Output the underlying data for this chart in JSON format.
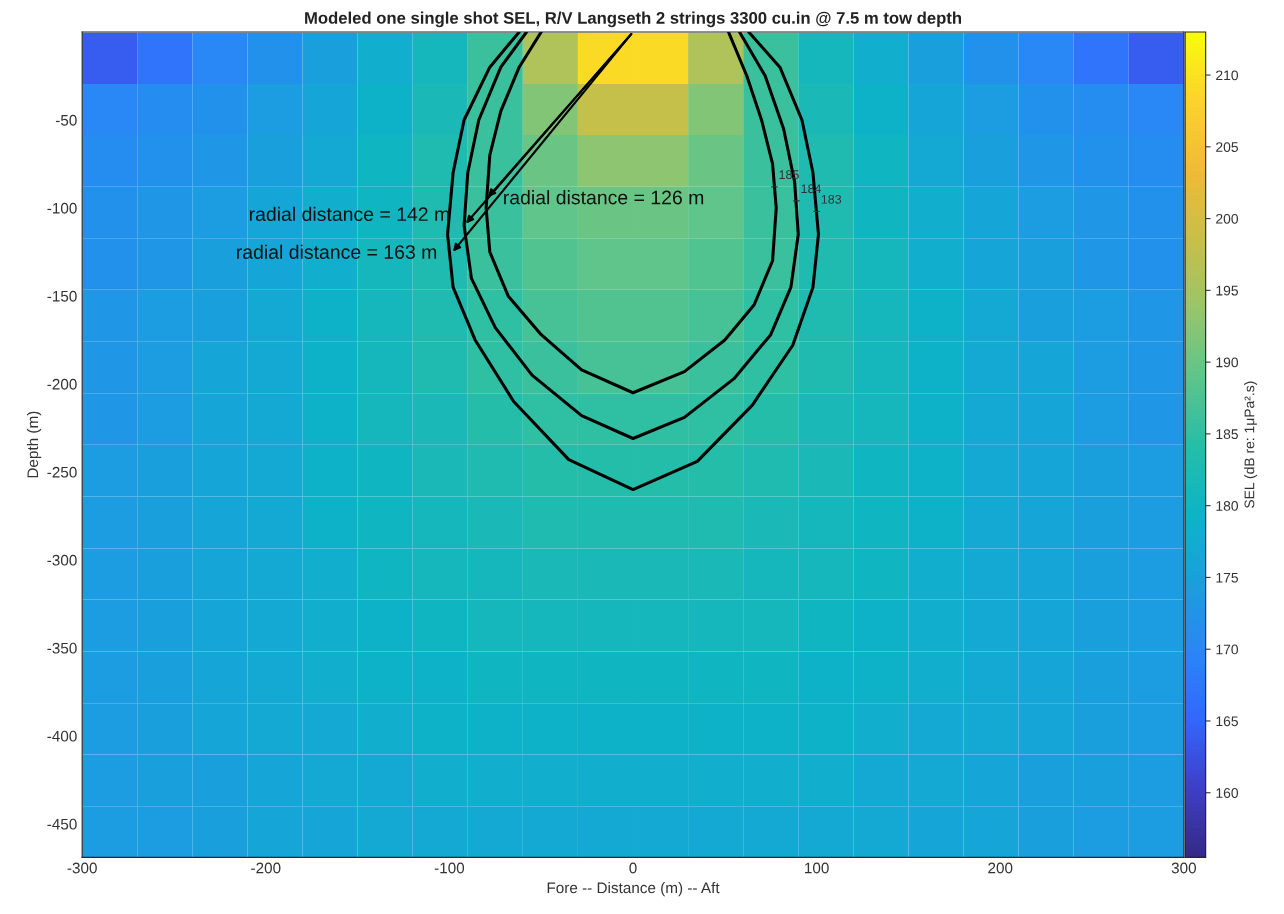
{
  "chart_data": {
    "type": "heatmap",
    "title": "Modeled one single shot SEL, R/V Langseth 2 strings 3300 cu.in @ 7.5 m tow depth",
    "xlabel": "Fore -- Distance (m) -- Aft",
    "ylabel": "Depth (m)",
    "clabel": "SEL (dB re: 1μPa².s)",
    "xlim": [
      -300,
      300
    ],
    "ylim": [
      -469,
      0
    ],
    "xticks": [
      -300,
      -200,
      -100,
      0,
      100,
      200,
      300
    ],
    "yticks": [
      -450,
      -400,
      -350,
      -300,
      -250,
      -200,
      -150,
      -100,
      -50
    ],
    "clim": [
      155.5,
      213
    ],
    "cticks": [
      160,
      165,
      170,
      175,
      180,
      185,
      190,
      195,
      200,
      205,
      210
    ],
    "x": [
      -285,
      -255,
      -225,
      -195,
      -165,
      -135,
      -105,
      -75,
      -45,
      -15,
      15,
      45,
      75,
      105,
      135,
      165,
      195,
      225,
      255,
      285
    ],
    "y": [
      -15,
      -44,
      -73,
      -103,
      -132,
      -161,
      -191,
      -220,
      -249,
      -279,
      -308,
      -337,
      -367,
      -396,
      -425,
      -455
    ],
    "cells": [
      [
        164,
        167,
        170,
        172,
        175,
        178,
        181,
        186,
        196,
        209,
        209,
        196,
        186,
        181,
        178,
        175,
        172,
        170,
        167,
        164
      ],
      [
        170,
        171,
        172,
        174,
        176,
        179,
        182,
        186,
        192,
        198,
        198,
        192,
        186,
        182,
        179,
        176,
        174,
        172,
        171,
        170
      ],
      [
        171,
        172,
        173,
        175,
        177,
        180,
        183,
        186,
        190,
        193,
        193,
        190,
        186,
        183,
        180,
        177,
        175,
        173,
        172,
        171
      ],
      [
        172,
        173,
        174,
        176,
        178,
        180,
        183,
        186,
        189,
        190,
        190,
        189,
        186,
        183,
        180,
        178,
        176,
        174,
        173,
        172
      ],
      [
        172,
        173,
        175,
        176,
        178,
        181,
        183,
        186,
        188,
        189,
        189,
        188,
        186,
        183,
        181,
        178,
        176,
        175,
        173,
        172
      ],
      [
        173,
        174,
        175,
        177,
        179,
        181,
        183,
        185,
        187,
        188,
        188,
        187,
        185,
        183,
        181,
        179,
        177,
        175,
        174,
        173
      ],
      [
        173,
        174,
        176,
        177,
        179,
        181,
        183,
        185,
        186,
        187,
        187,
        186,
        185,
        183,
        181,
        179,
        177,
        176,
        174,
        173
      ],
      [
        173,
        174,
        176,
        177,
        179,
        181,
        182,
        184,
        185,
        185,
        185,
        185,
        184,
        182,
        181,
        179,
        177,
        176,
        174,
        173
      ],
      [
        174,
        175,
        176,
        177,
        179,
        180,
        182,
        183,
        184,
        184,
        184,
        184,
        183,
        182,
        180,
        179,
        177,
        176,
        175,
        174
      ],
      [
        174,
        175,
        176,
        177,
        179,
        180,
        181,
        182,
        183,
        183,
        183,
        183,
        182,
        181,
        180,
        179,
        177,
        176,
        175,
        174
      ],
      [
        174,
        175,
        176,
        177,
        178,
        180,
        181,
        181,
        182,
        182,
        182,
        182,
        181,
        181,
        180,
        178,
        177,
        176,
        175,
        174
      ],
      [
        174,
        175,
        176,
        177,
        178,
        179,
        180,
        181,
        181,
        181,
        181,
        181,
        181,
        180,
        179,
        178,
        177,
        176,
        175,
        174
      ],
      [
        174,
        175,
        176,
        177,
        178,
        179,
        179,
        180,
        180,
        180,
        180,
        180,
        180,
        179,
        179,
        178,
        177,
        176,
        175,
        174
      ],
      [
        174,
        175,
        176,
        177,
        177,
        178,
        179,
        179,
        179,
        179,
        179,
        179,
        179,
        179,
        178,
        177,
        177,
        176,
        175,
        174
      ],
      [
        174,
        175,
        175,
        176,
        177,
        177,
        178,
        178,
        178,
        178,
        178,
        178,
        178,
        178,
        177,
        177,
        176,
        175,
        175,
        174
      ],
      [
        174,
        174,
        175,
        176,
        176,
        177,
        177,
        177,
        177,
        177,
        177,
        177,
        177,
        177,
        177,
        176,
        176,
        175,
        174,
        174
      ]
    ],
    "series": [
      {
        "type": "line",
        "color": "#000000",
        "x": [
          -50,
          -62,
          -72,
          -78,
          -80,
          -78,
          -68,
          -50,
          -28,
          0,
          28,
          50,
          66,
          76,
          78,
          76,
          70,
          62,
          52
        ],
        "values": [
          0,
          -20,
          -45,
          -70,
          -100,
          -125,
          -150,
          -172,
          -192,
          -205,
          -193,
          -175,
          -155,
          -130,
          -100,
          -75,
          -50,
          -25,
          0
        ]
      },
      {
        "type": "line",
        "color": "#000000",
        "x": [
          -58,
          -72,
          -84,
          -90,
          -92,
          -88,
          -75,
          -55,
          -28,
          0,
          28,
          55,
          75,
          86,
          90,
          88,
          82,
          72,
          58
        ],
        "values": [
          0,
          -20,
          -50,
          -80,
          -110,
          -140,
          -168,
          -195,
          -218,
          -231,
          -219,
          -197,
          -172,
          -145,
          -115,
          -85,
          -55,
          -25,
          0
        ]
      },
      {
        "type": "line",
        "color": "#000000",
        "x": [
          -62,
          -78,
          -92,
          -98,
          -101,
          -98,
          -86,
          -65,
          -35,
          0,
          35,
          65,
          87,
          98,
          101,
          98,
          92,
          80,
          63
        ],
        "values": [
          0,
          -20,
          -50,
          -80,
          -115,
          -145,
          -175,
          -210,
          -243,
          -260,
          -244,
          -212,
          -178,
          -145,
          -115,
          -80,
          -50,
          -20,
          0
        ]
      }
    ],
    "annotations": [
      {
        "text": "radial distance = 126 m",
        "x": -80,
        "y": -95
      },
      {
        "text": "radial distance = 142 m",
        "x": -92,
        "y": -110
      },
      {
        "text": "radial distance = 163 m",
        "x": -99,
        "y": -126
      },
      {
        "text": "185",
        "x": 77,
        "y": -88
      },
      {
        "text": "184",
        "x": 89,
        "y": -96
      },
      {
        "text": "183",
        "x": 100,
        "y": -102
      }
    ],
    "grid": false,
    "legend": false
  }
}
